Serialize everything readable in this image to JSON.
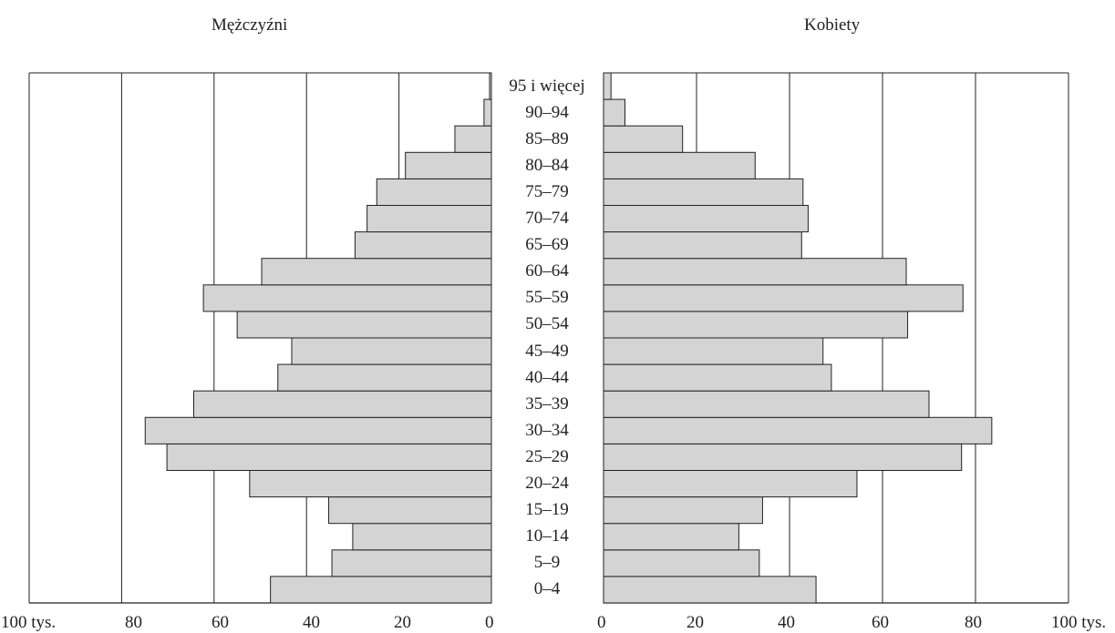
{
  "chart_data": {
    "type": "bar",
    "orientation": "horizontal",
    "layout": "population-pyramid",
    "categories": [
      "0–4",
      "5–9",
      "10–14",
      "15–19",
      "20–24",
      "25–29",
      "30–34",
      "35–39",
      "40–44",
      "45–49",
      "50–54",
      "55–59",
      "60–64",
      "65–69",
      "70–74",
      "75–79",
      "80–84",
      "85–89",
      "90–94",
      "95 i więcej"
    ],
    "series": [
      {
        "name": "Mężczyźni",
        "side": "left",
        "values": [
          47.8,
          34.5,
          30.0,
          35.2,
          52.3,
          70.2,
          74.9,
          64.4,
          46.2,
          43.2,
          55.0,
          62.3,
          49.7,
          29.5,
          26.9,
          24.8,
          18.6,
          7.9,
          1.6,
          0.4
        ]
      },
      {
        "name": "Kobiety",
        "side": "right",
        "values": [
          45.7,
          33.5,
          29.1,
          34.2,
          54.5,
          77.0,
          83.5,
          70.0,
          49.0,
          47.2,
          65.4,
          77.3,
          65.1,
          42.6,
          44.0,
          42.9,
          32.6,
          17.0,
          4.6,
          1.6
        ]
      }
    ],
    "xlim": [
      0,
      100
    ],
    "left_ticks": [
      "100 tys.",
      "80",
      "60",
      "40",
      "20",
      "0"
    ],
    "right_ticks": [
      "0",
      "20",
      "40",
      "60",
      "80",
      "100 tys."
    ],
    "grid": true,
    "colors": {
      "bar_fill": "#d4d4d4",
      "bar_stroke": "#222222",
      "grid": "#222222"
    }
  }
}
